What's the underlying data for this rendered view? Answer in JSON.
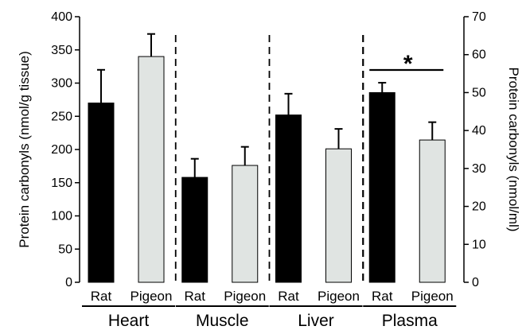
{
  "chart_data": {
    "type": "bar",
    "ylabel": "Protein carbonyls (nmol/g tissue)",
    "ylabel_right": "Protein carbonyls (nmol/ml)",
    "ylim": [
      0,
      400
    ],
    "yticks": [
      "0",
      "50",
      "100",
      "150",
      "200",
      "250",
      "300",
      "350",
      "400"
    ],
    "ylim_right": [
      0,
      70
    ],
    "yticks_right": [
      "0",
      "10",
      "20",
      "30",
      "40",
      "50",
      "60",
      "70"
    ],
    "grid": false,
    "groups": [
      {
        "name": "Heart",
        "axis": "left",
        "bars": [
          {
            "category": "Rat",
            "value": 270,
            "error": 50,
            "color": "#000000"
          },
          {
            "category": "Pigeon",
            "value": 340,
            "error": 34,
            "color": "#e0e4e2"
          }
        ]
      },
      {
        "name": "Muscle",
        "axis": "left",
        "bars": [
          {
            "category": "Rat",
            "value": 158,
            "error": 28,
            "color": "#000000"
          },
          {
            "category": "Pigeon",
            "value": 176,
            "error": 28,
            "color": "#e0e4e2"
          }
        ]
      },
      {
        "name": "Liver",
        "axis": "left",
        "bars": [
          {
            "category": "Rat",
            "value": 252,
            "error": 32,
            "color": "#000000"
          },
          {
            "category": "Pigeon",
            "value": 201,
            "error": 30,
            "color": "#e0e4e2"
          }
        ]
      },
      {
        "name": "Plasma",
        "axis": "right",
        "bars": [
          {
            "category": "Rat",
            "value": 50,
            "error": 2.6,
            "color": "#000000"
          },
          {
            "category": "Pigeon",
            "value": 37.5,
            "error": 4.7,
            "color": "#e0e4e2"
          }
        ]
      }
    ],
    "annotations": [
      {
        "text": "*",
        "group": "Plasma",
        "meaning": "significance bracket between Rat and Pigeon"
      }
    ]
  }
}
